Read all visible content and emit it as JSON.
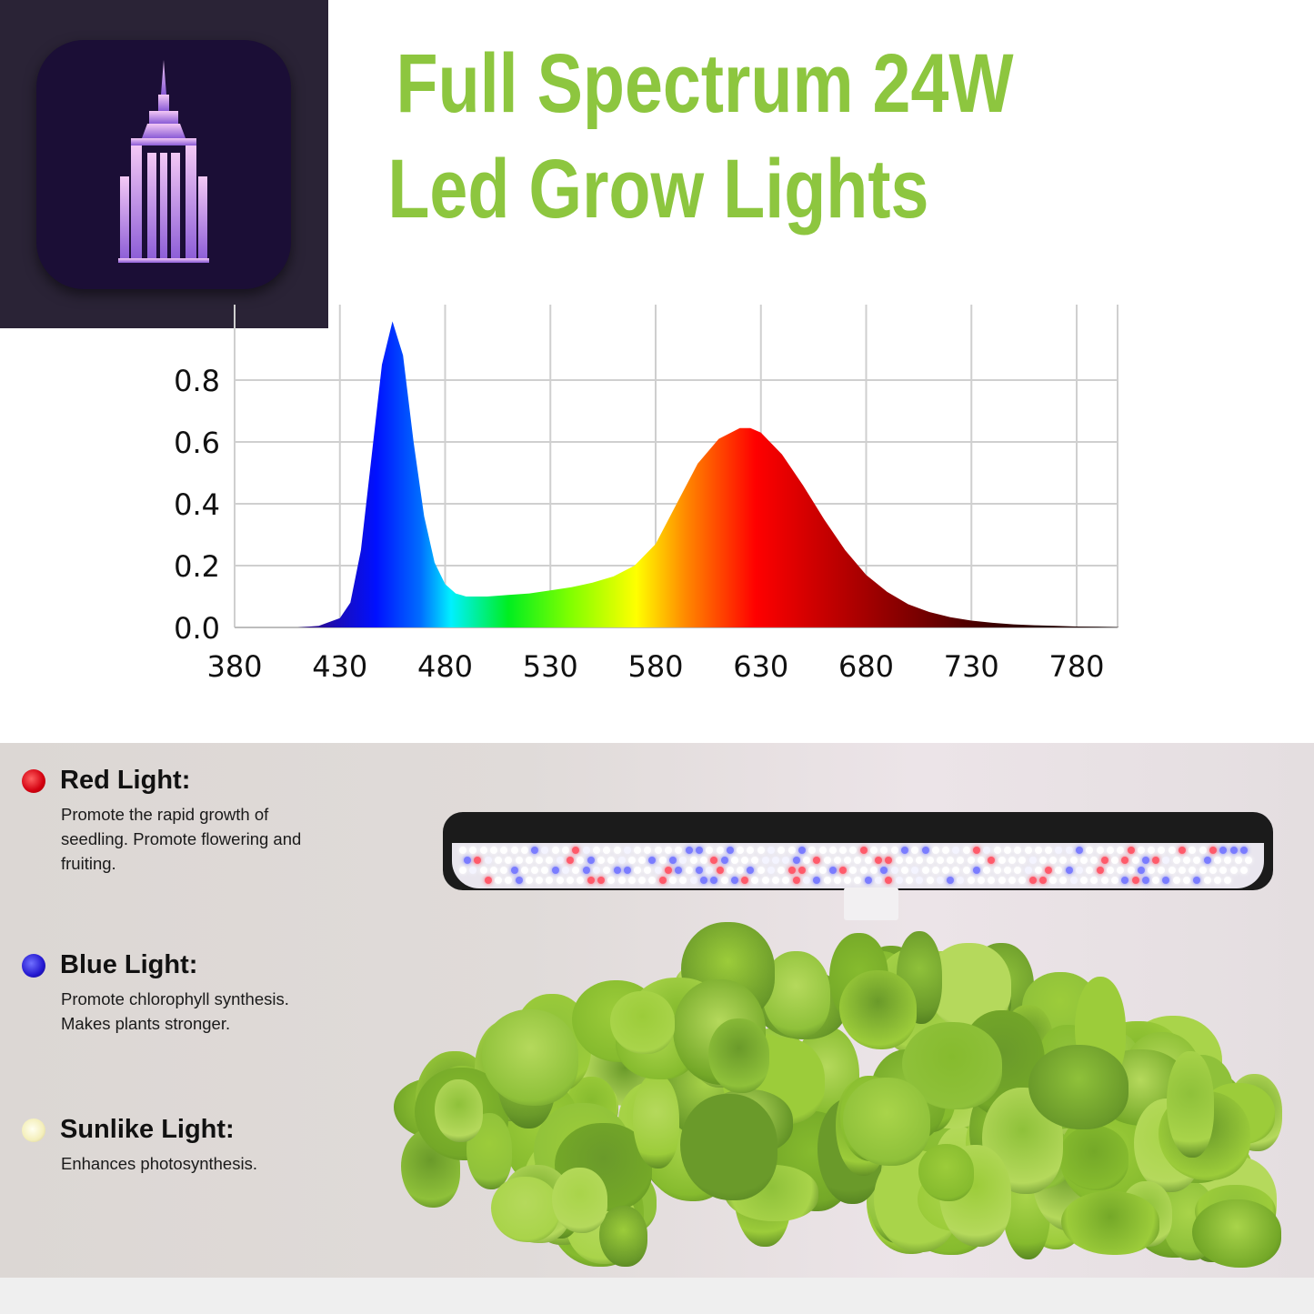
{
  "header": {
    "title_line1": "Full Spectrum 24W",
    "title_line2": "Led Grow Lights",
    "title_color": "#8dc63f",
    "logo_icon": "skyscraper-app-icon"
  },
  "chart_data": {
    "type": "area",
    "title": "",
    "xlabel": "",
    "ylabel": "",
    "xlim": [
      380,
      800
    ],
    "ylim": [
      0,
      1.0
    ],
    "x_ticks": [
      "380",
      "430",
      "480",
      "530",
      "580",
      "630",
      "680",
      "730",
      "780"
    ],
    "y_ticks": [
      "0.0",
      "0.2",
      "0.4",
      "0.6",
      "0.8"
    ],
    "grid": true,
    "fill": "visible-spectrum gradient",
    "x": [
      410,
      420,
      430,
      435,
      440,
      445,
      450,
      455,
      460,
      465,
      470,
      475,
      480,
      485,
      490,
      500,
      510,
      520,
      530,
      540,
      550,
      560,
      570,
      580,
      590,
      600,
      610,
      620,
      625,
      630,
      640,
      650,
      660,
      670,
      680,
      690,
      700,
      710,
      720,
      730,
      740,
      750,
      760,
      770,
      780,
      790,
      800
    ],
    "y": [
      0,
      0.005,
      0.03,
      0.08,
      0.25,
      0.55,
      0.85,
      0.99,
      0.88,
      0.6,
      0.36,
      0.21,
      0.14,
      0.11,
      0.1,
      0.1,
      0.105,
      0.11,
      0.12,
      0.13,
      0.145,
      0.165,
      0.2,
      0.27,
      0.4,
      0.53,
      0.61,
      0.645,
      0.645,
      0.63,
      0.56,
      0.46,
      0.35,
      0.25,
      0.17,
      0.115,
      0.075,
      0.05,
      0.033,
      0.022,
      0.015,
      0.01,
      0.007,
      0.005,
      0.003,
      0.002,
      0.001
    ]
  },
  "features": [
    {
      "title": "Red Light:",
      "text": "Promote the rapid growth of seedling. Promote flowering and fruiting.",
      "color": "#e0141c"
    },
    {
      "title": "Blue Light:",
      "text": "Promote chlorophyll synthesis. Makes plants stronger.",
      "color": "#2b22d6"
    },
    {
      "title": "Sunlike Light:",
      "text": "Enhances photosynthesis.",
      "color": "#f6f2c4"
    }
  ]
}
